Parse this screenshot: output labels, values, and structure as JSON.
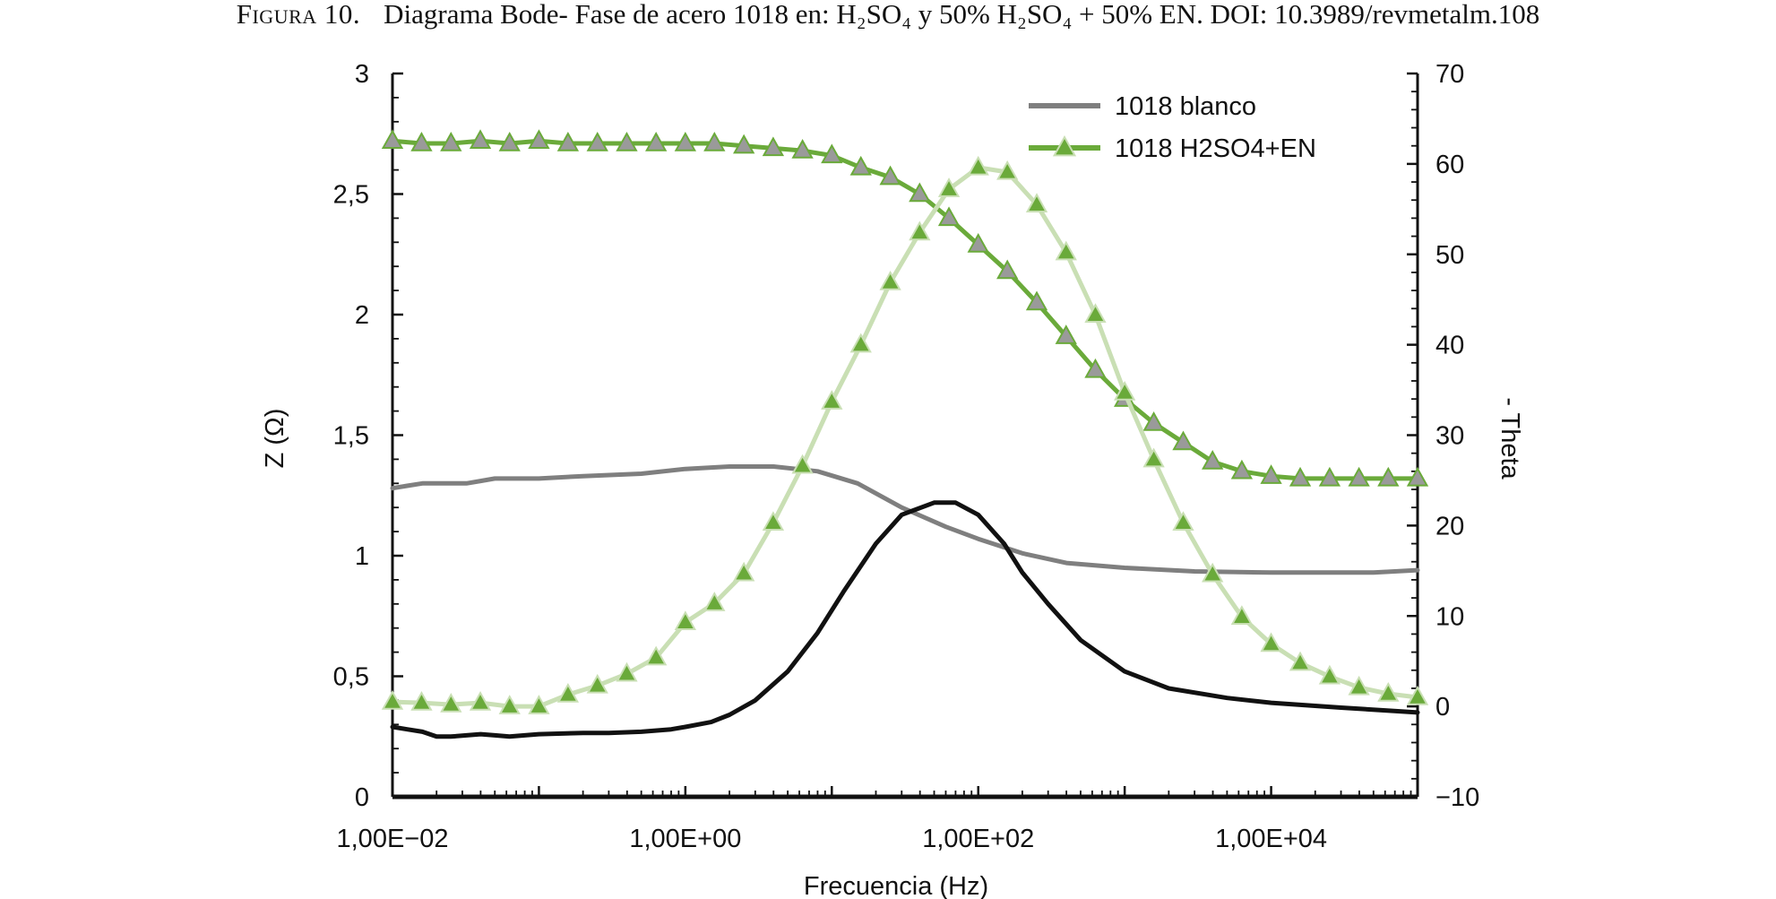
{
  "caption": {
    "label": "Figura 10.",
    "text": "Diagrama Bode- Fase de acero 1018 en: H₂SO₄ y 50% H₂SO₄ + 50% EN. DOI: 10.3989/revmetalm.108"
  },
  "chart_data": {
    "type": "line",
    "xlabel": "Frecuencia (Hz)",
    "ylabel_left": "Z (Ω)",
    "ylabel_right": "- Theta",
    "xscale": "log",
    "xlim": [
      0.01,
      100000
    ],
    "ylim_left": [
      0,
      3
    ],
    "ylim_right": [
      -10,
      70
    ],
    "x_ticks": [
      {
        "value": 0.01,
        "label": "1,00E−02"
      },
      {
        "value": 1,
        "label": "1,00E+00"
      },
      {
        "value": 100,
        "label": "1,00E+02"
      },
      {
        "value": 10000,
        "label": "1,00E+04"
      }
    ],
    "y_left_ticks": [
      {
        "value": 0,
        "label": "0"
      },
      {
        "value": 0.5,
        "label": "0,5"
      },
      {
        "value": 1,
        "label": "1"
      },
      {
        "value": 1.5,
        "label": "1,5"
      },
      {
        "value": 2,
        "label": "2"
      },
      {
        "value": 2.5,
        "label": "2,5"
      },
      {
        "value": 3,
        "label": "3"
      }
    ],
    "y_right_ticks": [
      {
        "value": -10,
        "label": "−10"
      },
      {
        "value": 0,
        "label": "0"
      },
      {
        "value": 10,
        "label": "10"
      },
      {
        "value": 20,
        "label": "20"
      },
      {
        "value": 30,
        "label": "30"
      },
      {
        "value": 40,
        "label": "40"
      },
      {
        "value": 50,
        "label": "50"
      },
      {
        "value": 60,
        "label": "60"
      },
      {
        "value": 70,
        "label": "70"
      }
    ],
    "legend_position": "top-right",
    "legend": [
      {
        "name": "1018 blanco",
        "color": "#7f7f7f",
        "marker": "none"
      },
      {
        "name": "1018 H2SO4+EN",
        "color": "#6aaa3a",
        "marker": "triangle"
      }
    ],
    "series": [
      {
        "name": "1018 blanco",
        "axis": "left",
        "color": "#7f7f7f",
        "marker": "none",
        "x": [
          0.01,
          0.0126,
          0.016,
          0.02,
          0.025,
          0.032,
          0.04,
          0.05,
          0.063,
          0.08,
          0.1,
          0.2,
          0.5,
          1,
          2,
          4,
          8,
          15,
          30,
          60,
          100,
          200,
          400,
          1000,
          3000,
          10000,
          50000,
          100000
        ],
        "y": [
          1.28,
          1.29,
          1.3,
          1.3,
          1.3,
          1.3,
          1.31,
          1.32,
          1.32,
          1.32,
          1.32,
          1.33,
          1.34,
          1.36,
          1.37,
          1.37,
          1.35,
          1.3,
          1.2,
          1.12,
          1.07,
          1.01,
          0.97,
          0.95,
          0.935,
          0.93,
          0.93,
          0.94
        ]
      },
      {
        "name": "",
        "axis": "left",
        "color": "#111111",
        "marker": "none",
        "x": [
          0.01,
          0.0126,
          0.016,
          0.02,
          0.025,
          0.032,
          0.04,
          0.05,
          0.063,
          0.08,
          0.1,
          0.2,
          0.3,
          0.5,
          0.8,
          1,
          1.5,
          2,
          3,
          5,
          8,
          12,
          20,
          30,
          50,
          70,
          100,
          150,
          200,
          300,
          500,
          1000,
          2000,
          5000,
          10000,
          30000,
          100000
        ],
        "y": [
          0.29,
          0.28,
          0.27,
          0.25,
          0.25,
          0.255,
          0.26,
          0.255,
          0.25,
          0.255,
          0.26,
          0.265,
          0.265,
          0.27,
          0.28,
          0.29,
          0.31,
          0.34,
          0.4,
          0.52,
          0.68,
          0.85,
          1.05,
          1.17,
          1.22,
          1.22,
          1.17,
          1.05,
          0.93,
          0.8,
          0.65,
          0.52,
          0.45,
          0.41,
          0.39,
          0.37,
          0.35
        ]
      },
      {
        "name": "1018 H2SO4+EN",
        "axis": "left",
        "color": "#6aaa3a",
        "marker": "triangle",
        "x": [
          0.01,
          0.0158,
          0.0251,
          0.0398,
          0.0631,
          0.1,
          0.158,
          0.251,
          0.398,
          0.631,
          1,
          1.58,
          2.51,
          3.98,
          6.31,
          10,
          15.8,
          25.1,
          39.8,
          63.1,
          100,
          158,
          251,
          398,
          631,
          1000,
          1580,
          2510,
          3980,
          6310,
          10000,
          15800,
          25100,
          39800,
          63100,
          100000
        ],
        "y": [
          2.72,
          2.71,
          2.71,
          2.72,
          2.71,
          2.72,
          2.71,
          2.71,
          2.71,
          2.71,
          2.71,
          2.71,
          2.7,
          2.69,
          2.68,
          2.66,
          2.61,
          2.57,
          2.5,
          2.4,
          2.29,
          2.18,
          2.05,
          1.91,
          1.77,
          1.65,
          1.55,
          1.47,
          1.39,
          1.35,
          1.33,
          1.32,
          1.32,
          1.32,
          1.32,
          1.32
        ]
      },
      {
        "name": "",
        "axis": "right",
        "color": "#c9dfb4",
        "marker": "triangle",
        "x": [
          0.01,
          0.0158,
          0.0251,
          0.0398,
          0.0631,
          0.1,
          0.158,
          0.251,
          0.398,
          0.631,
          1,
          1.58,
          2.51,
          3.98,
          6.31,
          10,
          15.8,
          25.1,
          39.8,
          63.1,
          100,
          158,
          251,
          398,
          631,
          1000,
          1580,
          2510,
          3980,
          6310,
          10000,
          15800,
          25100,
          39800,
          63100,
          100000
        ],
        "y": [
          0.5,
          0.4,
          0.2,
          0.4,
          0.0,
          0.0,
          1.3,
          2.3,
          3.6,
          5.4,
          9.3,
          11.4,
          14.7,
          20.3,
          26.6,
          33.7,
          40.0,
          46.9,
          52.4,
          57.2,
          59.6,
          59.1,
          55.5,
          50.2,
          43.3,
          34.7,
          27.3,
          20.3,
          14.6,
          9.9,
          6.9,
          4.8,
          3.3,
          2.1,
          1.4,
          1.0
        ]
      }
    ]
  }
}
